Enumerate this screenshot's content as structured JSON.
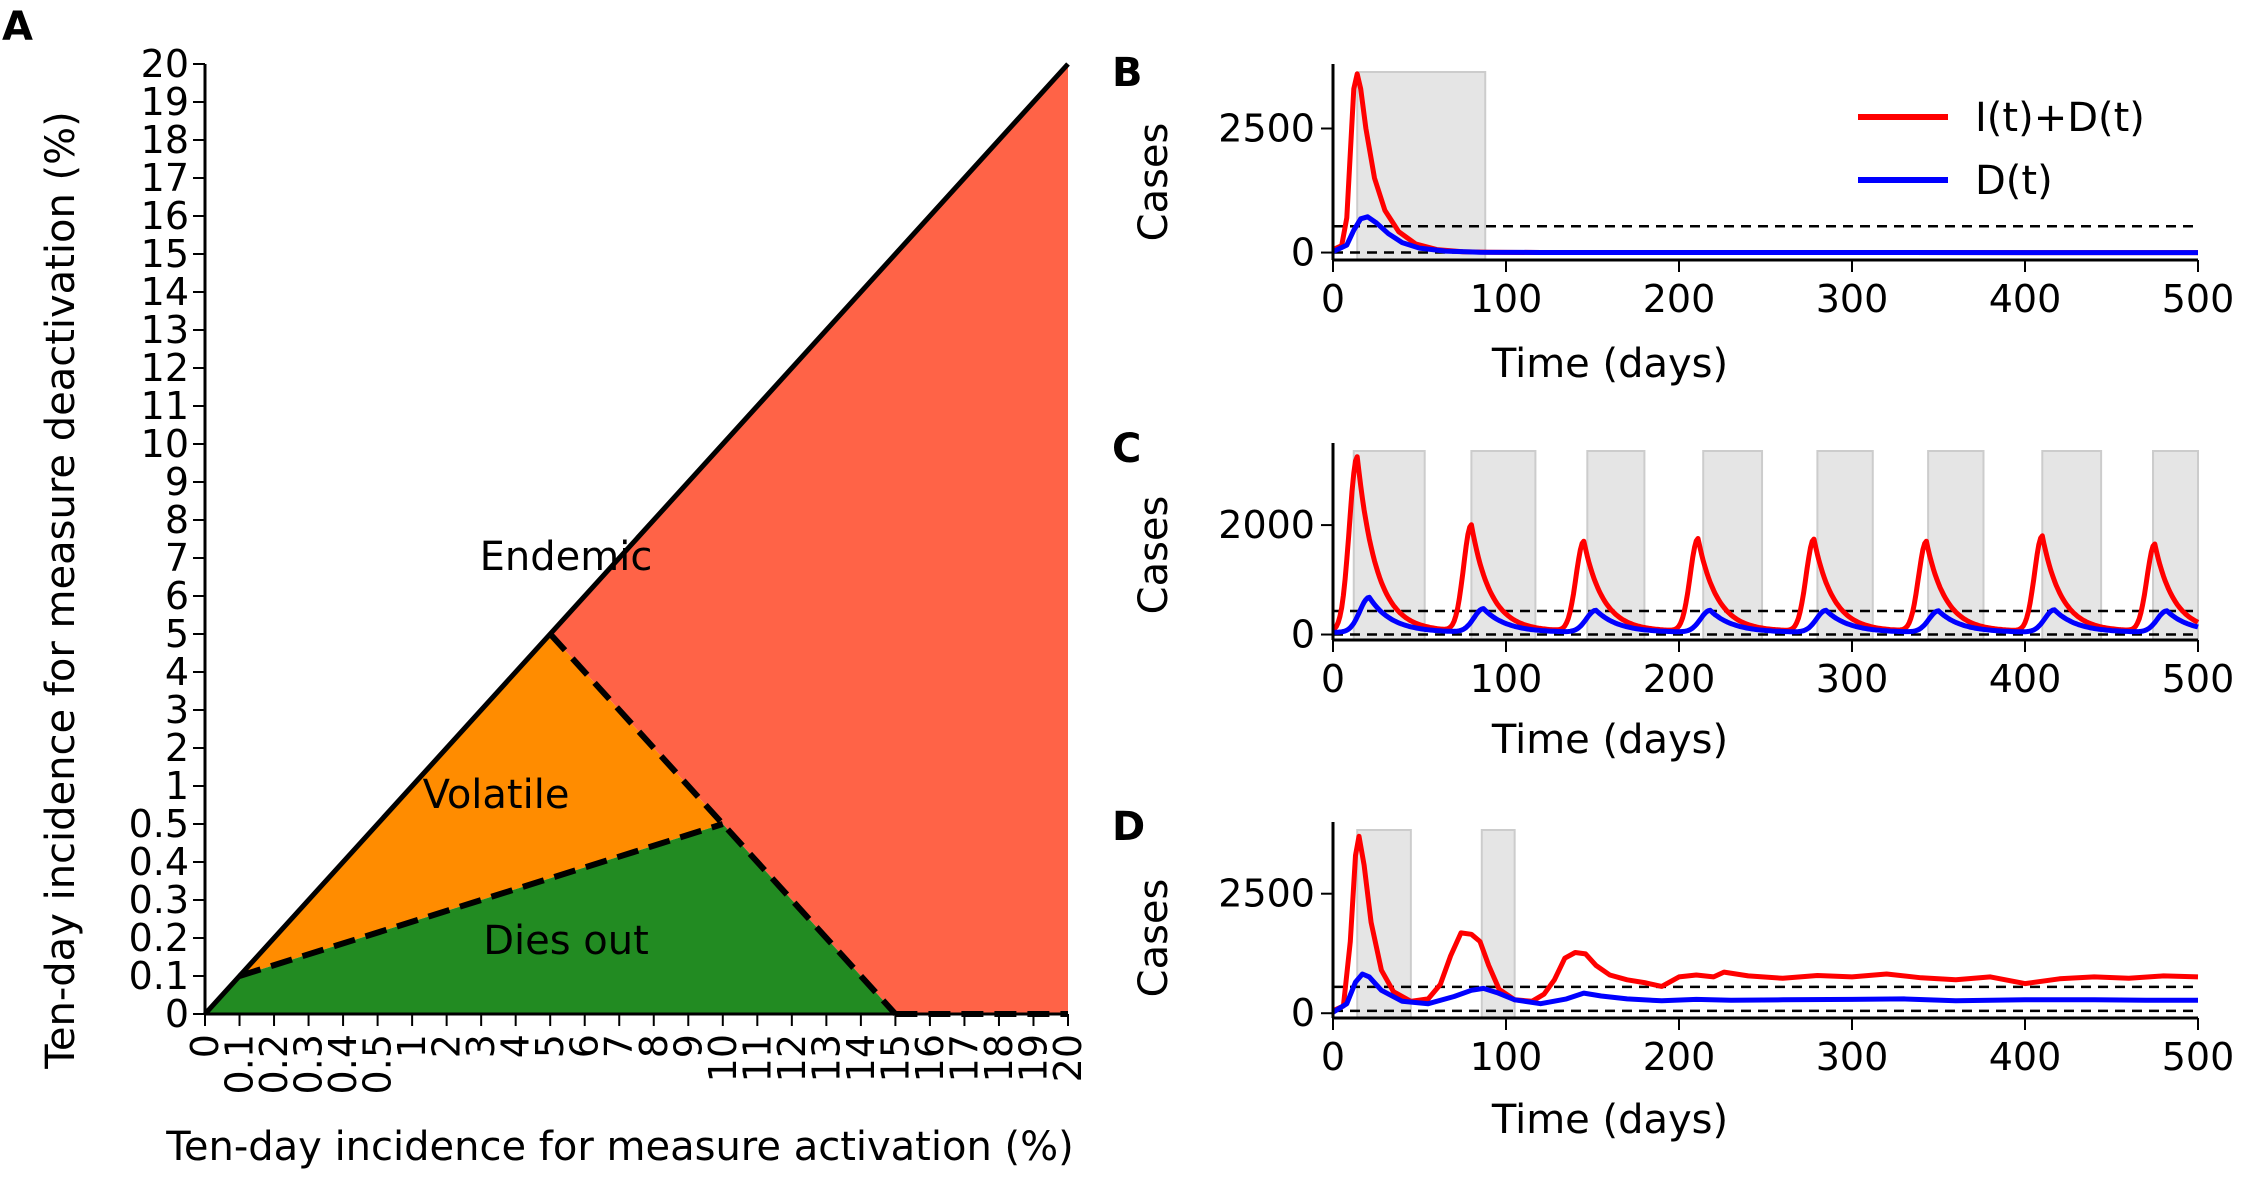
{
  "chart_data": [
    {
      "panel": "A",
      "type": "area",
      "xlabel": "Ten-day incidence for measure activation (%)",
      "ylabel": "Ten-day incidence for measure deactivation (%)",
      "ticks": [
        "0",
        "0.1",
        "0.2",
        "0.3",
        "0.4",
        "0.5",
        "1",
        "2",
        "3",
        "4",
        "5",
        "6",
        "7",
        "8",
        "9",
        "10",
        "11",
        "12",
        "13",
        "14",
        "15",
        "16",
        "17",
        "18",
        "19",
        "20"
      ],
      "regions": [
        {
          "name": "Endemic",
          "color": "#ff6347",
          "polygon": [
            [
              "5",
              "5"
            ],
            [
              "20",
              "20"
            ],
            [
              "20",
              "0"
            ],
            [
              "15",
              "0"
            ],
            [
              "10",
              "0.5"
            ]
          ]
        },
        {
          "name": "Volatile",
          "color": "#ff8c00",
          "polygon": [
            [
              "0.1",
              "0.1"
            ],
            [
              "5",
              "5"
            ],
            [
              "10",
              "0.5"
            ]
          ]
        },
        {
          "name": "Dies out",
          "color": "#228b22",
          "polygon": [
            [
              "0",
              "0"
            ],
            [
              "0.1",
              "0.1"
            ],
            [
              "10",
              "0.5"
            ],
            [
              "15",
              "0"
            ]
          ]
        }
      ],
      "solid_lines": [
        [
          [
            "0",
            "0"
          ],
          [
            "20",
            "20"
          ]
        ]
      ],
      "dashed_lines": [
        [
          [
            "0.1",
            "0.1"
          ],
          [
            "10",
            "0.5"
          ]
        ],
        [
          [
            "5",
            "5"
          ],
          [
            "15",
            "0"
          ]
        ],
        [
          [
            "15",
            "0"
          ],
          [
            "20",
            "0"
          ]
        ]
      ],
      "region_labels": {
        "endemic": "Endemic",
        "volatile": "Volatile",
        "dies_out": "Dies out"
      }
    },
    {
      "panel": "B",
      "type": "line",
      "xlabel": "Time (days)",
      "ylabel": "Cases",
      "xlim": [
        0,
        500
      ],
      "ylim": [
        -150,
        3800
      ],
      "xticks": [
        0,
        100,
        200,
        300,
        400,
        500
      ],
      "yticks": [
        0,
        2500
      ],
      "thresholds": [
        0,
        530
      ],
      "shaded": [
        [
          14,
          88
        ]
      ],
      "series": [
        {
          "name": "I(t)+D(t)",
          "color": "#ff0000",
          "points": [
            [
              0,
              60
            ],
            [
              5,
              140
            ],
            [
              8,
              700
            ],
            [
              10,
              2000
            ],
            [
              12,
              3300
            ],
            [
              14,
              3600
            ],
            [
              16,
              3300
            ],
            [
              19,
              2500
            ],
            [
              24,
              1500
            ],
            [
              30,
              850
            ],
            [
              38,
              420
            ],
            [
              48,
              170
            ],
            [
              60,
              60
            ],
            [
              75,
              15
            ],
            [
              90,
              5
            ],
            [
              120,
              2
            ],
            [
              500,
              0
            ]
          ]
        },
        {
          "name": "D(t)",
          "color": "#0000ff",
          "points": [
            [
              0,
              20
            ],
            [
              8,
              150
            ],
            [
              12,
              450
            ],
            [
              16,
              680
            ],
            [
              20,
              720
            ],
            [
              25,
              600
            ],
            [
              32,
              380
            ],
            [
              40,
              200
            ],
            [
              50,
              90
            ],
            [
              65,
              30
            ],
            [
              85,
              8
            ],
            [
              120,
              2
            ],
            [
              500,
              0
            ]
          ]
        }
      ],
      "legend": [
        "I(t)+D(t)",
        "D(t)"
      ]
    },
    {
      "panel": "C",
      "type": "line",
      "xlabel": "Time (days)",
      "ylabel": "Cases",
      "xlim": [
        0,
        500
      ],
      "ylim": [
        -100,
        3500
      ],
      "xticks": [
        0,
        100,
        200,
        300,
        400,
        500
      ],
      "yticks": [
        0,
        2000
      ],
      "thresholds": [
        0,
        430
      ],
      "shaded": [
        [
          12,
          53
        ],
        [
          80,
          117
        ],
        [
          147,
          180
        ],
        [
          214,
          248
        ],
        [
          280,
          312
        ],
        [
          344,
          376
        ],
        [
          410,
          444
        ],
        [
          474,
          500
        ]
      ],
      "peaks_main": [
        [
          14,
          3250
        ],
        [
          80,
          2000
        ],
        [
          145,
          1700
        ],
        [
          211,
          1750
        ],
        [
          278,
          1740
        ],
        [
          343,
          1700
        ],
        [
          410,
          1800
        ],
        [
          475,
          1650
        ]
      ],
      "peaks_d": [
        [
          21,
          680
        ],
        [
          87,
          470
        ],
        [
          152,
          440
        ],
        [
          218,
          440
        ],
        [
          285,
          440
        ],
        [
          350,
          430
        ],
        [
          417,
          450
        ],
        [
          482,
          430
        ]
      ],
      "series": [
        {
          "name": "I(t)+D(t)",
          "color": "#ff0000"
        },
        {
          "name": "D(t)",
          "color": "#0000ff"
        }
      ]
    },
    {
      "panel": "D",
      "type": "line",
      "xlabel": "Time (days)",
      "ylabel": "Cases",
      "xlim": [
        0,
        500
      ],
      "ylim": [
        -100,
        4000
      ],
      "xticks": [
        0,
        100,
        200,
        300,
        400,
        500
      ],
      "yticks": [
        0,
        2500
      ],
      "thresholds": [
        50,
        550
      ],
      "shaded": [
        [
          14,
          45
        ],
        [
          86,
          105
        ]
      ],
      "series": [
        {
          "name": "I(t)+D(t)",
          "color": "#ff0000",
          "points": [
            [
              0,
              50
            ],
            [
              6,
              150
            ],
            [
              10,
              1500
            ],
            [
              13,
              3300
            ],
            [
              15,
              3700
            ],
            [
              18,
              3100
            ],
            [
              22,
              1900
            ],
            [
              28,
              900
            ],
            [
              35,
              450
            ],
            [
              45,
              250
            ],
            [
              55,
              300
            ],
            [
              62,
              600
            ],
            [
              68,
              1200
            ],
            [
              74,
              1680
            ],
            [
              80,
              1650
            ],
            [
              85,
              1500
            ],
            [
              90,
              1000
            ],
            [
              96,
              500
            ],
            [
              105,
              280
            ],
            [
              115,
              250
            ],
            [
              122,
              400
            ],
            [
              128,
              700
            ],
            [
              134,
              1150
            ],
            [
              140,
              1270
            ],
            [
              146,
              1240
            ],
            [
              152,
              1000
            ],
            [
              160,
              800
            ],
            [
              170,
              700
            ],
            [
              180,
              640
            ],
            [
              190,
              560
            ],
            [
              200,
              760
            ],
            [
              210,
              800
            ],
            [
              220,
              760
            ],
            [
              226,
              860
            ],
            [
              240,
              780
            ],
            [
              260,
              730
            ],
            [
              280,
              790
            ],
            [
              300,
              760
            ],
            [
              320,
              820
            ],
            [
              340,
              740
            ],
            [
              360,
              700
            ],
            [
              380,
              760
            ],
            [
              400,
              620
            ],
            [
              420,
              720
            ],
            [
              440,
              760
            ],
            [
              460,
              730
            ],
            [
              480,
              780
            ],
            [
              500,
              760
            ]
          ]
        },
        {
          "name": "D(t)",
          "color": "#0000ff",
          "points": [
            [
              0,
              20
            ],
            [
              8,
              200
            ],
            [
              13,
              650
            ],
            [
              17,
              820
            ],
            [
              21,
              760
            ],
            [
              28,
              480
            ],
            [
              40,
              250
            ],
            [
              55,
              200
            ],
            [
              70,
              350
            ],
            [
              80,
              480
            ],
            [
              87,
              520
            ],
            [
              95,
              430
            ],
            [
              105,
              280
            ],
            [
              120,
              200
            ],
            [
              135,
              300
            ],
            [
              145,
              420
            ],
            [
              155,
              360
            ],
            [
              170,
              300
            ],
            [
              190,
              260
            ],
            [
              210,
              290
            ],
            [
              230,
              270
            ],
            [
              260,
              280
            ],
            [
              300,
              290
            ],
            [
              330,
              300
            ],
            [
              360,
              260
            ],
            [
              400,
              280
            ],
            [
              440,
              280
            ],
            [
              470,
              270
            ],
            [
              500,
              270
            ]
          ]
        }
      ]
    }
  ]
}
